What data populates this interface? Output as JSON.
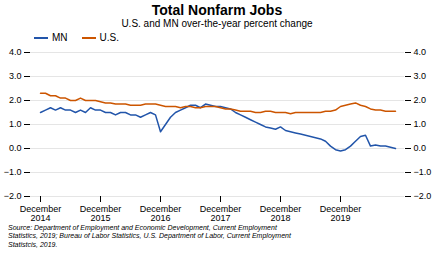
{
  "chart_data": {
    "type": "line",
    "title": "Total Nonfarm Jobs",
    "subtitle": "U.S. and MN over-the-year percent change",
    "caption": "Source: Department of Employment and Economic Development, Current Employment\nStatistics, 2019; Bureau of Labor Statistics, U.S. Department of Labor, Current Employment\nStatistcis, 2019.",
    "categories": [
      "December\n2014",
      null,
      null,
      null,
      null,
      null,
      null,
      null,
      null,
      null,
      null,
      null,
      "December\n2015",
      null,
      null,
      null,
      null,
      null,
      null,
      null,
      null,
      null,
      null,
      null,
      "December\n2016",
      null,
      null,
      null,
      null,
      null,
      null,
      null,
      null,
      null,
      null,
      null,
      "December\n2017",
      null,
      null,
      null,
      null,
      null,
      null,
      null,
      null,
      null,
      null,
      null,
      "December\n2018",
      null,
      null,
      null,
      null,
      null,
      null,
      null,
      null,
      null,
      null,
      null,
      "December\n2019",
      null,
      null,
      null,
      null,
      null,
      null,
      null,
      null,
      null,
      null,
      null
    ],
    "series": [
      {
        "name": "MN",
        "color": "#2255aa",
        "values": [
          1.5,
          1.6,
          1.7,
          1.6,
          1.7,
          1.6,
          1.6,
          1.5,
          1.6,
          1.5,
          1.7,
          1.6,
          1.6,
          1.5,
          1.5,
          1.4,
          1.5,
          1.5,
          1.4,
          1.4,
          1.3,
          1.4,
          1.5,
          1.4,
          0.7,
          1.0,
          1.3,
          1.5,
          1.6,
          1.7,
          1.8,
          1.8,
          1.7,
          1.85,
          1.8,
          1.75,
          1.75,
          1.7,
          1.65,
          1.5,
          1.4,
          1.3,
          1.2,
          1.1,
          1.0,
          0.9,
          0.85,
          0.8,
          0.9,
          0.75,
          0.7,
          0.65,
          0.6,
          0.55,
          0.5,
          0.45,
          0.4,
          0.3,
          0.1,
          -0.05,
          -0.1,
          -0.05,
          0.1,
          0.3,
          0.5,
          0.55,
          0.1,
          0.15,
          0.1,
          0.1,
          0.05,
          0.0
        ]
      },
      {
        "name": "U.S.",
        "color": "#cc5500",
        "values": [
          2.3,
          2.3,
          2.2,
          2.2,
          2.1,
          2.1,
          2.0,
          2.0,
          2.1,
          2.0,
          2.0,
          2.0,
          1.95,
          1.9,
          1.9,
          1.85,
          1.85,
          1.85,
          1.8,
          1.8,
          1.8,
          1.85,
          1.85,
          1.85,
          1.8,
          1.75,
          1.75,
          1.75,
          1.7,
          1.75,
          1.75,
          1.7,
          1.7,
          1.75,
          1.75,
          1.75,
          1.7,
          1.65,
          1.65,
          1.6,
          1.55,
          1.55,
          1.55,
          1.5,
          1.5,
          1.55,
          1.55,
          1.5,
          1.5,
          1.5,
          1.45,
          1.5,
          1.5,
          1.5,
          1.5,
          1.5,
          1.5,
          1.55,
          1.55,
          1.6,
          1.75,
          1.8,
          1.85,
          1.9,
          1.8,
          1.75,
          1.65,
          1.6,
          1.6,
          1.55,
          1.55,
          1.55
        ]
      }
    ],
    "ylim": [
      -2,
      4
    ],
    "yticks": [
      -2,
      -1,
      0,
      1,
      2,
      3,
      4
    ],
    "grid": true,
    "legend": "upper left"
  }
}
